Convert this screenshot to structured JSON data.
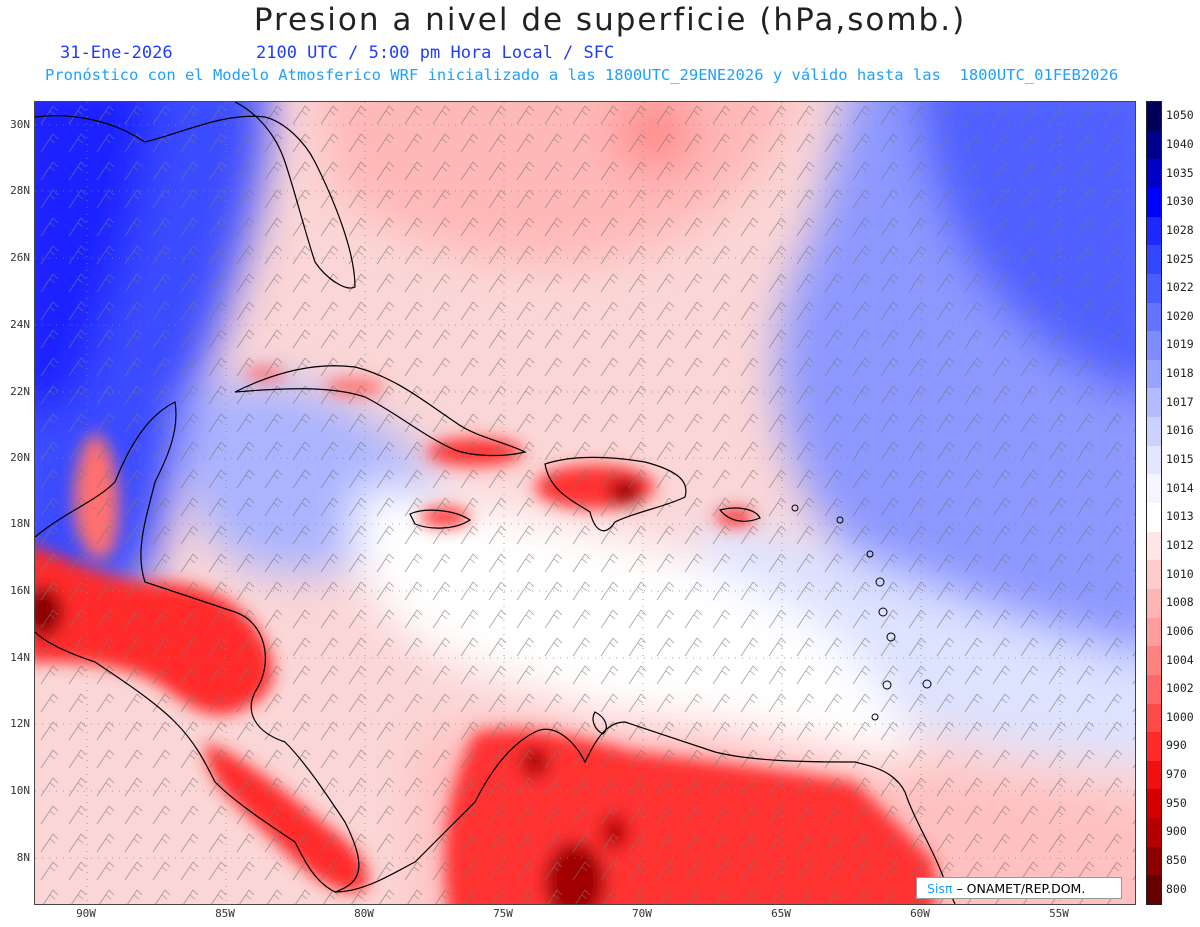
{
  "title": "Presion a nivel de superficie (hPa,somb.)",
  "date": "31-Ene-2026",
  "time": "2100 UTC / 5:00 pm Hora Local / SFC",
  "forecast": "Pronóstico con el Modelo Atmosferico WRF inicializado a las 1800UTC_29ENE2026 y válido hasta las  1800UTC_01FEB2026",
  "lat_labels": [
    "30N",
    "28N",
    "26N",
    "24N",
    "22N",
    "20N",
    "18N",
    "16N",
    "14N",
    "12N",
    "10N",
    "8N"
  ],
  "lon_labels": [
    "90W",
    "85W",
    "80W",
    "75W",
    "70W",
    "65W",
    "60W",
    "55W"
  ],
  "colorbar": {
    "levels": [
      "1050",
      "1040",
      "1035",
      "1030",
      "1028",
      "1025",
      "1022",
      "1020",
      "1019",
      "1018",
      "1017",
      "1016",
      "1015",
      "1014",
      "1013",
      "1012",
      "1010",
      "1008",
      "1006",
      "1004",
      "1002",
      "1000",
      "990",
      "970",
      "950",
      "900",
      "850",
      "800"
    ],
    "colors": [
      "#00005a",
      "#00008c",
      "#0000c8",
      "#0000ff",
      "#1e28ff",
      "#3246ff",
      "#4a5cff",
      "#6474ff",
      "#7e8cff",
      "#98a4ff",
      "#b4bcff",
      "#ccd2ff",
      "#e2e6ff",
      "#f4f5ff",
      "#ffffff",
      "#ffe6e6",
      "#ffcccc",
      "#ffb4b4",
      "#ff9c9c",
      "#ff8282",
      "#ff6868",
      "#ff4a4a",
      "#ff2a2a",
      "#f01010",
      "#d40000",
      "#b40000",
      "#8c0000",
      "#640000"
    ]
  },
  "credit": {
    "brand": "Sisπ",
    "org": "– ONAMET/REP.DOM."
  }
}
